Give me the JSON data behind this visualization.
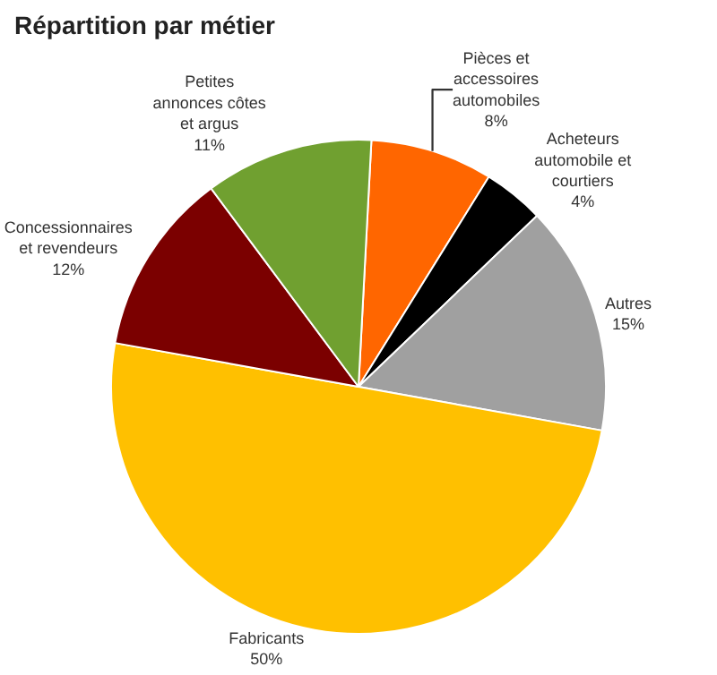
{
  "chart_data": {
    "type": "pie",
    "title": "Répartition par métier",
    "categories": [
      "Pièces et accessoires automobiles",
      "Acheteurs automobile et courtiers",
      "Autres",
      "Fabricants",
      "Concessionnaires et revendeurs",
      "Petites annonces côtes et argus"
    ],
    "values": [
      8,
      4,
      15,
      50,
      12,
      11
    ],
    "value_labels": [
      "8%",
      "4%",
      "15%",
      "50%",
      "12%",
      "11%"
    ],
    "colors": [
      "#ff6600",
      "#000000",
      "#a0a0a0",
      "#ffc000",
      "#7b0000",
      "#70a030"
    ]
  }
}
